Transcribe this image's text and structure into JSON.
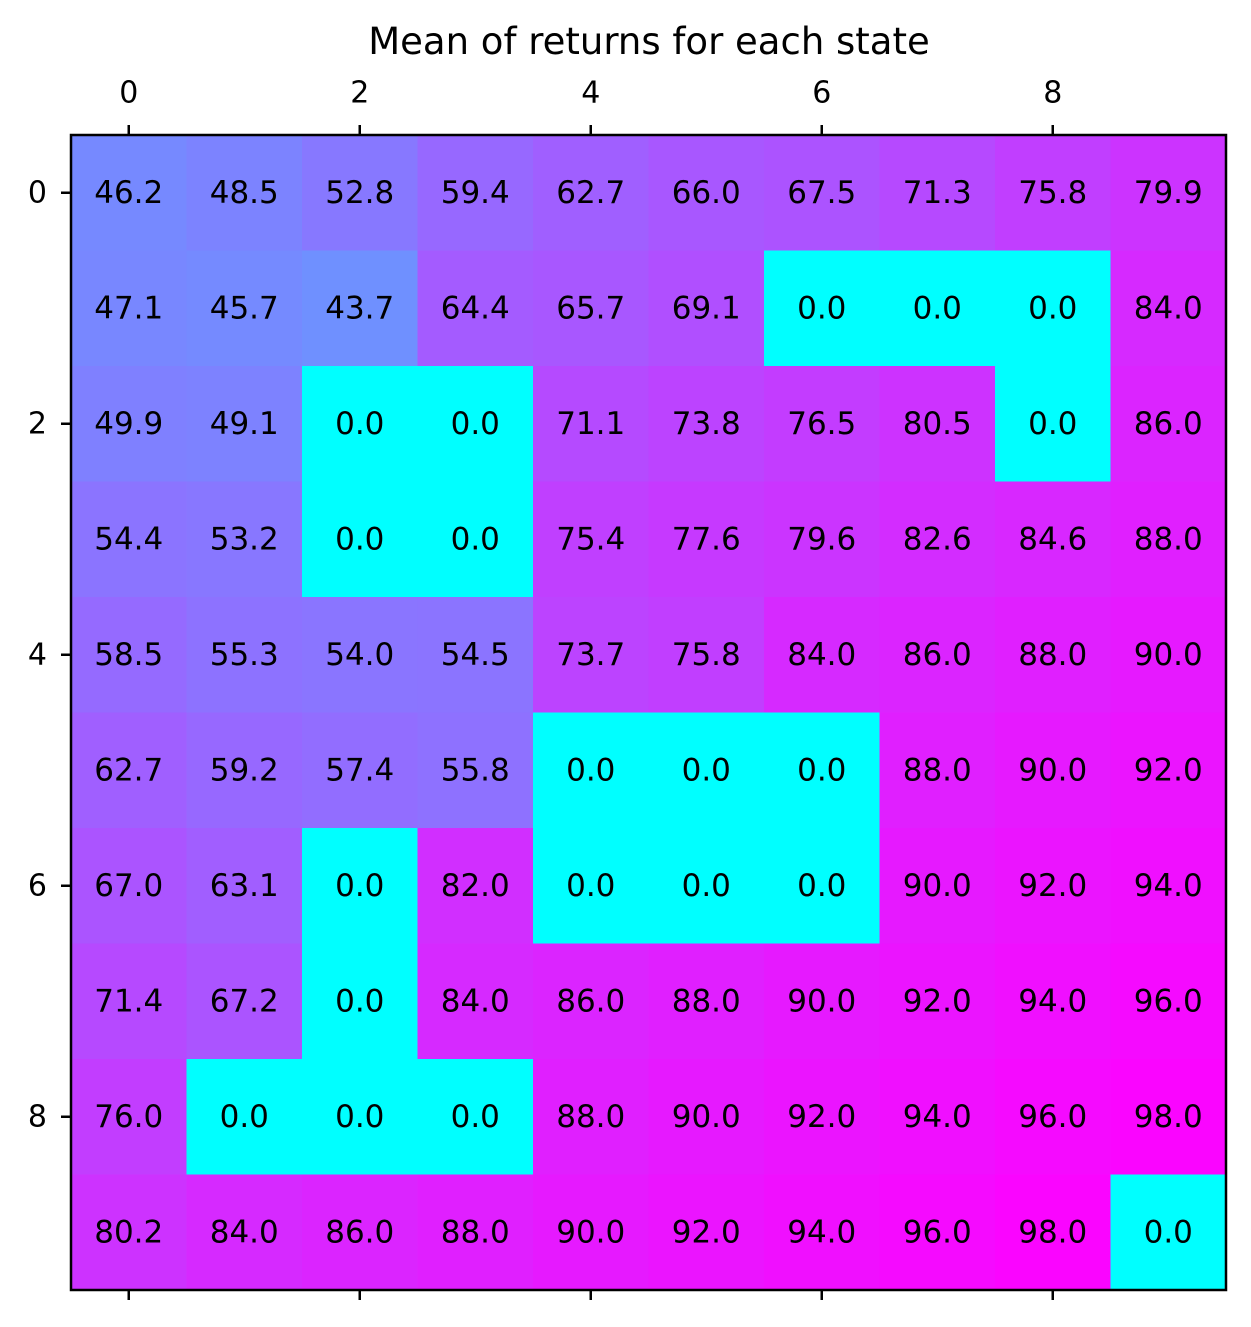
{
  "chart_data": {
    "type": "heatmap",
    "title": "Mean of returns for each state",
    "xlabel": "",
    "ylabel": "",
    "colormap": "cool",
    "value_range": [
      0,
      100
    ],
    "grid": false,
    "x_ticks_top": [
      "0",
      "2",
      "4",
      "6",
      "8"
    ],
    "x_ticks_bottom_labels": false,
    "y_ticks": [
      "0",
      "2",
      "4",
      "6",
      "8"
    ],
    "rows": 10,
    "cols": 10,
    "values": [
      [
        46.2,
        48.5,
        52.8,
        59.4,
        62.7,
        66.0,
        67.5,
        71.3,
        75.8,
        79.9
      ],
      [
        47.1,
        45.7,
        43.7,
        64.4,
        65.7,
        69.1,
        0.0,
        0.0,
        0.0,
        84.0
      ],
      [
        49.9,
        49.1,
        0.0,
        0.0,
        71.1,
        73.8,
        76.5,
        80.5,
        0.0,
        86.0
      ],
      [
        54.4,
        53.2,
        0.0,
        0.0,
        75.4,
        77.6,
        79.6,
        82.6,
        84.6,
        88.0
      ],
      [
        58.5,
        55.3,
        54.0,
        54.5,
        73.7,
        75.8,
        84.0,
        86.0,
        88.0,
        90.0
      ],
      [
        62.7,
        59.2,
        57.4,
        55.8,
        0.0,
        0.0,
        0.0,
        88.0,
        90.0,
        92.0
      ],
      [
        67.0,
        63.1,
        0.0,
        82.0,
        0.0,
        0.0,
        0.0,
        90.0,
        92.0,
        94.0
      ],
      [
        71.4,
        67.2,
        0.0,
        84.0,
        86.0,
        88.0,
        90.0,
        92.0,
        94.0,
        96.0
      ],
      [
        76.0,
        0.0,
        0.0,
        0.0,
        88.0,
        90.0,
        92.0,
        94.0,
        96.0,
        98.0
      ],
      [
        80.2,
        84.0,
        86.0,
        88.0,
        90.0,
        92.0,
        94.0,
        96.0,
        98.0,
        0.0
      ]
    ]
  }
}
